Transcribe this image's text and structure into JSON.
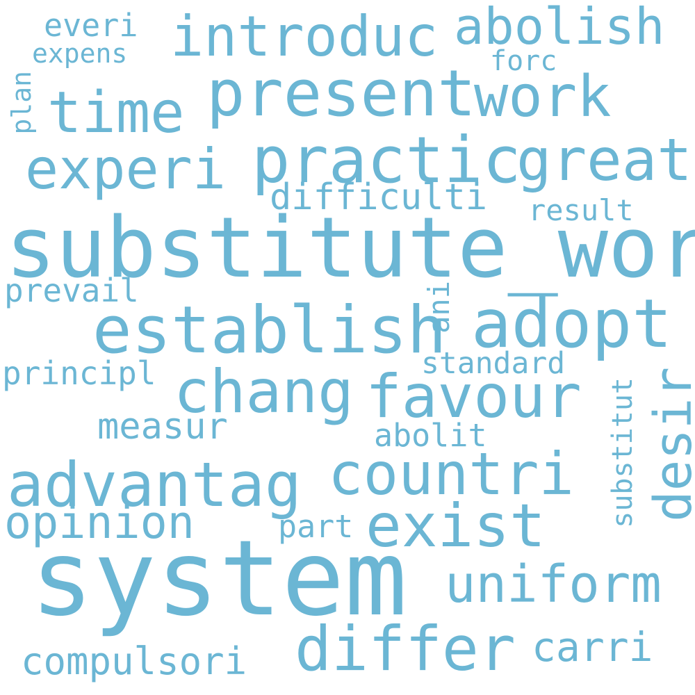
{
  "theme": {
    "word_color": "#6BB6D4",
    "background": "#FFFFFF"
  },
  "words": {
    "system": "system",
    "substitute_word": "substitute_word",
    "practic": "practic",
    "present": "present",
    "work": "work",
    "establish": "establish",
    "countri": "countri",
    "introduc": "introduc",
    "abolish": "abolish",
    "time": "time",
    "experi": "experi",
    "great": "great",
    "adopt": "adopt",
    "chang": "chang",
    "favour": "favour",
    "advantag": "advantag",
    "exist": "exist",
    "uniform": "uniform",
    "differ": "differ",
    "desir": "desir",
    "opinion": "opinion",
    "compulsori": "compulsori",
    "difficulti": "difficulti",
    "measur": "measur",
    "carri": "carri",
    "everi": "everi",
    "expens": "expens",
    "forc": "forc",
    "plan": "plan",
    "result": "result",
    "prevail": "prevail",
    "ani": "ani",
    "standard": "standard",
    "principl": "principl",
    "substitut": "substitut",
    "abolit": "abolit",
    "part": "part"
  }
}
